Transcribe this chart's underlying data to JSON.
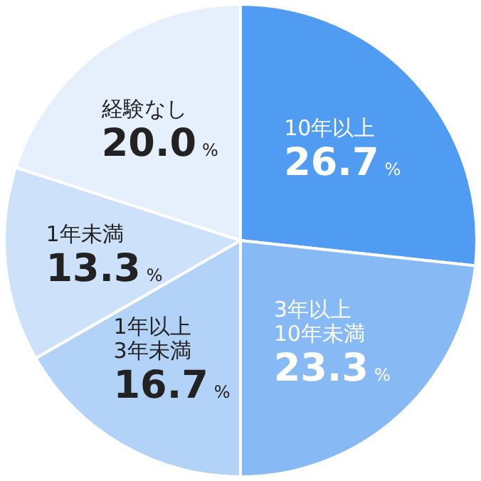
{
  "chart_data": {
    "type": "pie",
    "categories": [
      "10年以上",
      "3年以上\n10年未満",
      "1年以上\n3年未満",
      "1年未満",
      "経験なし"
    ],
    "values": [
      26.7,
      23.3,
      16.7,
      13.3,
      20.0
    ],
    "value_labels": [
      "26.7%",
      "23.3%",
      "16.7%",
      "13.3%",
      "20.0%"
    ],
    "colors": [
      "#4f9cf2",
      "#87baf5",
      "#b3d2f8",
      "#cde2fa",
      "#e6f0fc"
    ],
    "legend": false
  }
}
